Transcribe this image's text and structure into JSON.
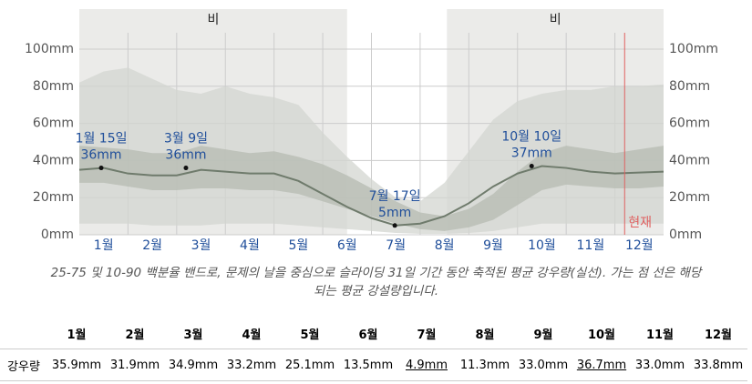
{
  "chart_data": {
    "type": "band-line",
    "x": [
      0,
      0.5,
      1,
      1.5,
      2,
      2.5,
      3,
      3.5,
      4,
      4.5,
      5,
      5.5,
      6,
      6.5,
      7,
      7.5,
      8,
      8.5,
      9,
      9.5,
      10,
      10.5,
      11,
      11.5,
      12
    ],
    "xlim": [
      0,
      12
    ],
    "xticks": [
      {
        "value": 0.5,
        "label": "1월"
      },
      {
        "value": 1.5,
        "label": "2월"
      },
      {
        "value": 2.5,
        "label": "3월"
      },
      {
        "value": 3.5,
        "label": "4월"
      },
      {
        "value": 4.5,
        "label": "5월"
      },
      {
        "value": 5.5,
        "label": "6월"
      },
      {
        "value": 6.5,
        "label": "7월"
      },
      {
        "value": 7.5,
        "label": "8월"
      },
      {
        "value": 8.5,
        "label": "9월"
      },
      {
        "value": 9.5,
        "label": "10월"
      },
      {
        "value": 10.5,
        "label": "11월"
      },
      {
        "value": 11.5,
        "label": "12월"
      }
    ],
    "ylim": [
      0,
      100
    ],
    "yticks": [
      {
        "value": 0,
        "label": "0mm"
      },
      {
        "value": 20,
        "label": "20mm"
      },
      {
        "value": 40,
        "label": "40mm"
      },
      {
        "value": 60,
        "label": "60mm"
      },
      {
        "value": 80,
        "label": "80mm"
      },
      {
        "value": 100,
        "label": "100mm"
      }
    ],
    "grid": true,
    "shaded_ranges": [
      {
        "from": 0,
        "to": 5.5,
        "label": "비"
      },
      {
        "from": 7.55,
        "to": 12,
        "label": "비"
      }
    ],
    "bands": [
      {
        "color": "#d3d6d0",
        "high": [
          82,
          88,
          90,
          84,
          78,
          76,
          80,
          76,
          74,
          70,
          55,
          42,
          30,
          20,
          18,
          28,
          45,
          62,
          72,
          76,
          78,
          78,
          80,
          80,
          81
        ],
        "low": [
          6,
          6,
          6,
          5,
          5,
          5,
          6,
          6,
          6,
          5,
          4,
          3,
          2,
          1,
          0.5,
          0.5,
          1,
          2,
          4,
          6,
          6,
          6,
          6,
          6,
          6
        ]
      },
      {
        "color": "#b5bbb2",
        "high": [
          48,
          47,
          46,
          44,
          44,
          48,
          46,
          44,
          45,
          42,
          38,
          32,
          25,
          18,
          12,
          10,
          14,
          22,
          34,
          44,
          48,
          46,
          44,
          46,
          48
        ],
        "low": [
          28,
          28,
          26,
          24,
          24,
          25,
          25,
          24,
          24,
          22,
          18,
          14,
          10,
          6,
          3,
          2,
          4,
          8,
          16,
          24,
          27,
          26,
          25,
          25,
          26
        ]
      }
    ],
    "median": {
      "color": "#6f7b6c",
      "values": [
        35,
        36,
        33,
        32,
        32,
        35,
        34,
        33,
        33,
        29,
        22,
        15,
        9,
        5,
        6,
        10,
        17,
        26,
        33,
        37,
        36,
        34,
        33,
        33.5,
        34
      ]
    },
    "annotations": [
      {
        "x": 0.45,
        "y": 36,
        "label": "1월 15일",
        "value_label": "36mm"
      },
      {
        "x": 2.19,
        "y": 36,
        "label": "3월 9일",
        "value_label": "36mm"
      },
      {
        "x": 6.48,
        "y": 5,
        "label": "7월 17일",
        "value_label": "5mm"
      },
      {
        "x": 9.29,
        "y": 37,
        "label": "10월 10일",
        "value_label": "37mm"
      }
    ],
    "now": {
      "x": 11.2,
      "label": "현재",
      "color": "#e06060"
    }
  },
  "caption": "25-75 및 10-90 백분율 밴드로, 문제의 날을 중심으로 슬라이딩 31일 기간 동안 축적된 평균 강우량(실선). 가는 점 선은 해당되는 평균 강설량입니다.",
  "table": {
    "header": [
      "1월",
      "2월",
      "3월",
      "4월",
      "5월",
      "6월",
      "7월",
      "8월",
      "9월",
      "10월",
      "11월",
      "12월"
    ],
    "row_label": "강우량",
    "values": [
      "35.9mm",
      "31.9mm",
      "34.9mm",
      "33.2mm",
      "25.1mm",
      "13.5mm",
      "4.9mm",
      "11.3mm",
      "33.0mm",
      "36.7mm",
      "33.0mm",
      "33.8mm"
    ],
    "underlined": [
      6,
      9
    ]
  }
}
